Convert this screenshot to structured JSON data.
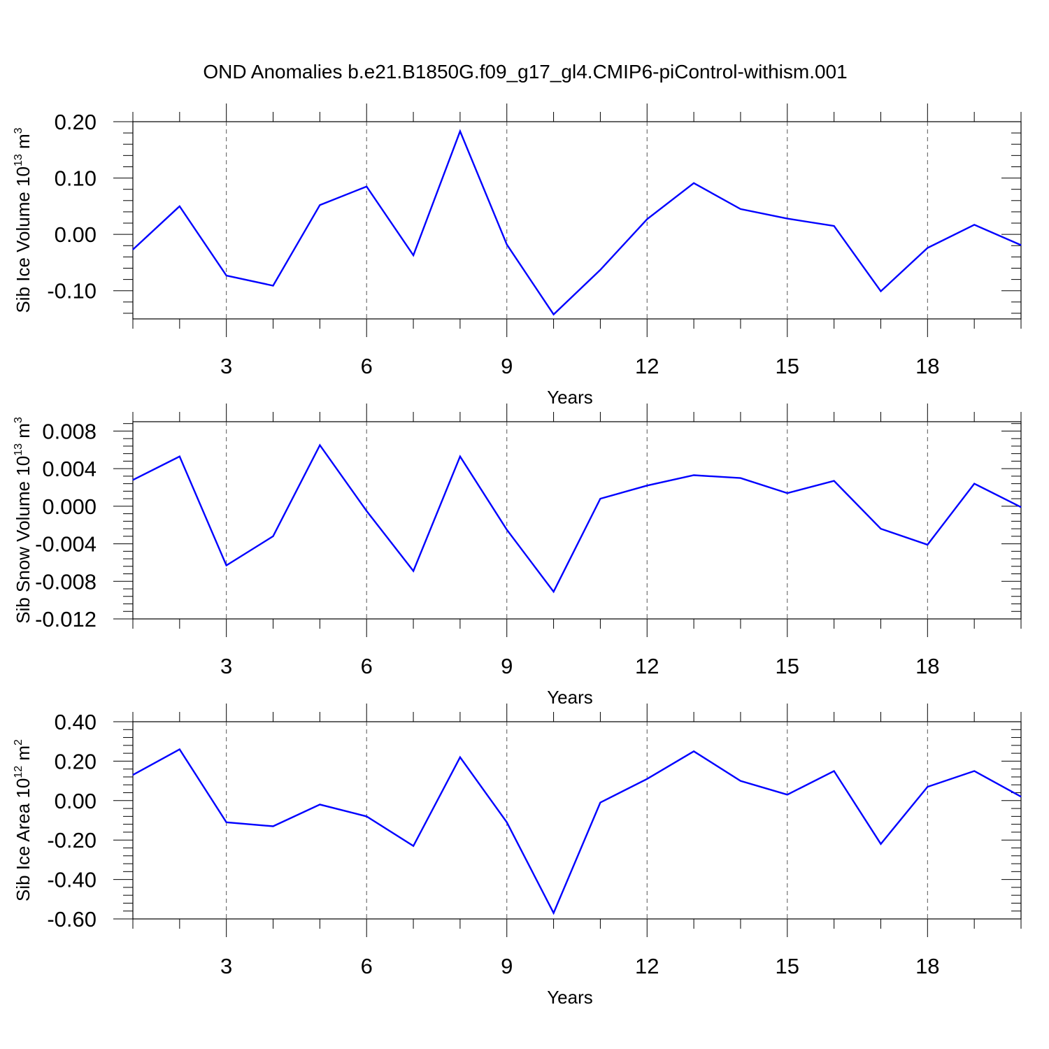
{
  "title": "OND Anomalies b.e21.B1850G.f09_g17_gl4.CMIP6-piControl-withism.001",
  "chart_data": [
    {
      "type": "line",
      "title": "",
      "xlabel": "Years",
      "ylabel": "Sib Ice Volume 10",
      "ylabel_exp": "13",
      "ylabel_unit": " m",
      "ylabel_unit_exp": "3",
      "xlim": [
        1,
        20
      ],
      "ylim": [
        -0.15,
        0.2
      ],
      "x_ticks": [
        3,
        6,
        9,
        12,
        15,
        18
      ],
      "y_ticks": [
        0.2,
        0.1,
        0.0,
        -0.1
      ],
      "y_tick_labels": [
        "0.20",
        "0.10",
        "0.00",
        "-0.10"
      ],
      "grid": "vertical dashed at major x ticks",
      "series": [
        {
          "color": "#0000ff",
          "x": [
            1,
            2,
            3,
            4,
            5,
            6,
            7,
            8,
            9,
            10,
            11,
            12,
            13,
            14,
            15,
            16,
            17,
            18,
            19,
            20
          ],
          "values": [
            -0.027,
            0.05,
            -0.073,
            -0.091,
            0.052,
            0.085,
            -0.037,
            0.183,
            -0.018,
            -0.142,
            -0.063,
            0.027,
            0.091,
            0.045,
            0.028,
            0.015,
            -0.101,
            -0.024,
            0.017,
            -0.019
          ]
        }
      ]
    },
    {
      "type": "line",
      "title": "",
      "xlabel": "Years",
      "ylabel": "Sib Snow Volume 10",
      "ylabel_exp": "13",
      "ylabel_unit": " m",
      "ylabel_unit_exp": "3",
      "xlim": [
        1,
        20
      ],
      "ylim": [
        -0.012,
        0.009
      ],
      "x_ticks": [
        3,
        6,
        9,
        12,
        15,
        18
      ],
      "y_ticks": [
        0.008,
        0.004,
        0.0,
        -0.004,
        -0.008,
        -0.012
      ],
      "y_tick_labels": [
        "0.008",
        "0.004",
        "0.000",
        "-0.004",
        "-0.008",
        "-0.012"
      ],
      "grid": "vertical dashed at major x ticks",
      "series": [
        {
          "color": "#0000ff",
          "x": [
            1,
            2,
            3,
            4,
            5,
            6,
            7,
            8,
            9,
            10,
            11,
            12,
            13,
            14,
            15,
            16,
            17,
            18,
            19,
            20
          ],
          "values": [
            0.0028,
            0.0053,
            -0.0063,
            -0.0032,
            0.0065,
            -0.0005,
            -0.0069,
            0.0053,
            -0.0025,
            -0.0091,
            0.0008,
            0.0022,
            0.0033,
            0.003,
            0.0014,
            0.0027,
            -0.0024,
            -0.0041,
            0.0024,
            -0.0001
          ]
        }
      ]
    },
    {
      "type": "line",
      "title": "",
      "xlabel": "Years",
      "ylabel": "Sib Ice Area 10",
      "ylabel_exp": "12",
      "ylabel_unit": " m",
      "ylabel_unit_exp": "2",
      "xlim": [
        1,
        20
      ],
      "ylim": [
        -0.6,
        0.4
      ],
      "x_ticks": [
        3,
        6,
        9,
        12,
        15,
        18
      ],
      "y_ticks": [
        0.4,
        0.2,
        0.0,
        -0.2,
        -0.4,
        -0.6
      ],
      "y_tick_labels": [
        "0.40",
        "0.20",
        "0.00",
        "-0.20",
        "-0.40",
        "-0.60"
      ],
      "grid": "vertical dashed at major x ticks",
      "series": [
        {
          "color": "#0000ff",
          "x": [
            1,
            2,
            3,
            4,
            5,
            6,
            7,
            8,
            9,
            10,
            11,
            12,
            13,
            14,
            15,
            16,
            17,
            18,
            19,
            20
          ],
          "values": [
            0.13,
            0.26,
            -0.11,
            -0.13,
            -0.02,
            -0.08,
            -0.23,
            0.22,
            -0.11,
            -0.57,
            -0.01,
            0.11,
            0.25,
            0.1,
            0.03,
            0.15,
            -0.22,
            0.07,
            0.15,
            0.02
          ]
        }
      ]
    }
  ]
}
